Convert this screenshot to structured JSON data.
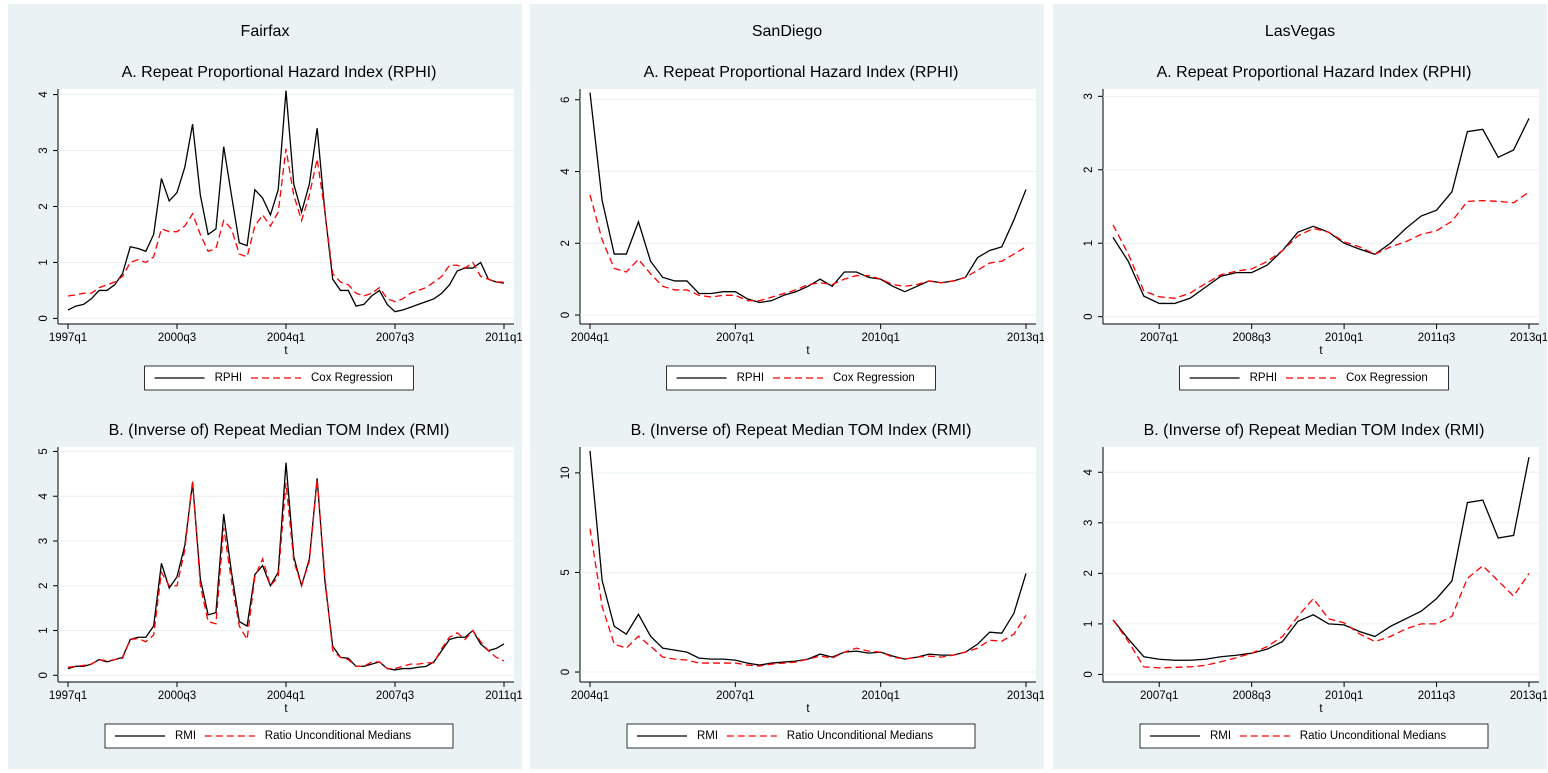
{
  "chart_data": [
    {
      "type": "line",
      "heading": "Fairfax",
      "title": "A. Repeat Proportional Hazard Index (RPHI)",
      "x_label": "t",
      "categories": [
        "1997q1",
        null,
        null,
        null,
        null,
        null,
        null,
        null,
        null,
        null,
        null,
        null,
        null,
        null,
        "2000q3",
        null,
        null,
        null,
        null,
        null,
        null,
        null,
        null,
        null,
        null,
        null,
        null,
        null,
        "2004q1",
        null,
        null,
        null,
        null,
        null,
        null,
        null,
        null,
        null,
        null,
        null,
        null,
        null,
        "2007q3",
        null,
        null,
        null,
        null,
        null,
        null,
        null,
        null,
        null,
        null,
        null,
        null,
        null,
        "2011q1"
      ],
      "series": [
        {
          "name": "RPHI",
          "color": "#000000",
          "dashed": false,
          "values": [
            0.15,
            0.22,
            0.25,
            0.35,
            0.5,
            0.5,
            0.6,
            0.8,
            1.28,
            1.25,
            1.2,
            1.5,
            2.5,
            2.1,
            2.25,
            2.7,
            3.47,
            2.2,
            1.5,
            1.6,
            3.07,
            2.2,
            1.35,
            1.3,
            2.3,
            2.15,
            1.85,
            2.3,
            4.07,
            2.4,
            1.9,
            2.4,
            3.4,
            1.9,
            0.7,
            0.5,
            0.5,
            0.22,
            0.25,
            0.4,
            0.5,
            0.25,
            0.12,
            0.15,
            0.2,
            0.25,
            0.3,
            0.35,
            0.45,
            0.6,
            0.85,
            0.9,
            0.9,
            1.0,
            0.7,
            0.65,
            0.63
          ]
        },
        {
          "name": "Cox Regression",
          "color": "#ff0000",
          "dashed": true,
          "values": [
            0.4,
            0.42,
            0.45,
            0.45,
            0.55,
            0.6,
            0.65,
            0.75,
            1.0,
            1.05,
            1.0,
            1.1,
            1.6,
            1.55,
            1.55,
            1.65,
            1.87,
            1.5,
            1.2,
            1.25,
            1.75,
            1.6,
            1.15,
            1.1,
            1.65,
            1.85,
            1.65,
            1.9,
            3.03,
            2.2,
            1.75,
            2.2,
            2.85,
            1.9,
            0.8,
            0.65,
            0.6,
            0.45,
            0.4,
            0.45,
            0.55,
            0.35,
            0.3,
            0.35,
            0.45,
            0.5,
            0.55,
            0.65,
            0.75,
            0.95,
            0.95,
            0.9,
            1.0,
            0.75,
            0.7,
            0.65,
            0.65
          ]
        }
      ],
      "ylim": [
        -0.1,
        4.1
      ],
      "yticks": [
        0,
        1,
        2,
        3,
        4
      ],
      "grid": true,
      "legend": "bottom"
    },
    {
      "type": "line",
      "title": "B. (Inverse of) Repeat Median TOM Index (RMI)",
      "x_label": "t",
      "categories": [
        "1997q1",
        null,
        null,
        null,
        null,
        null,
        null,
        null,
        null,
        null,
        null,
        null,
        null,
        null,
        "2000q3",
        null,
        null,
        null,
        null,
        null,
        null,
        null,
        null,
        null,
        null,
        null,
        null,
        null,
        "2004q1",
        null,
        null,
        null,
        null,
        null,
        null,
        null,
        null,
        null,
        null,
        null,
        null,
        null,
        "2007q3",
        null,
        null,
        null,
        null,
        null,
        null,
        null,
        null,
        null,
        null,
        null,
        null,
        null,
        "2011q1"
      ],
      "series": [
        {
          "name": "RMI",
          "color": "#000000",
          "dashed": false,
          "values": [
            0.15,
            0.2,
            0.2,
            0.25,
            0.35,
            0.3,
            0.35,
            0.4,
            0.8,
            0.85,
            0.85,
            1.1,
            2.5,
            1.95,
            2.2,
            2.9,
            4.3,
            2.15,
            1.35,
            1.4,
            3.6,
            2.3,
            1.2,
            1.1,
            2.25,
            2.45,
            2.0,
            2.3,
            4.75,
            2.65,
            2.0,
            2.6,
            4.4,
            2.1,
            0.65,
            0.4,
            0.38,
            0.2,
            0.2,
            0.25,
            0.3,
            0.15,
            0.12,
            0.15,
            0.15,
            0.18,
            0.2,
            0.3,
            0.55,
            0.8,
            0.85,
            0.85,
            1.0,
            0.7,
            0.55,
            0.6,
            0.7
          ]
        },
        {
          "name": "Ratio Unconditional Medians",
          "color": "#ff0000",
          "dashed": true,
          "values": [
            0.18,
            0.2,
            0.22,
            0.25,
            0.35,
            0.32,
            0.35,
            0.38,
            0.8,
            0.82,
            0.75,
            0.9,
            2.3,
            2.0,
            2.0,
            2.8,
            4.35,
            2.0,
            1.2,
            1.15,
            3.3,
            2.1,
            1.1,
            0.8,
            2.2,
            2.6,
            2.0,
            2.2,
            4.3,
            2.55,
            2.0,
            2.55,
            4.38,
            2.2,
            0.55,
            0.4,
            0.35,
            0.2,
            0.2,
            0.3,
            0.3,
            0.15,
            0.15,
            0.2,
            0.25,
            0.25,
            0.28,
            0.28,
            0.6,
            0.85,
            0.95,
            0.8,
            1.0,
            0.75,
            0.55,
            0.4,
            0.32
          ]
        }
      ],
      "ylim": [
        -0.15,
        5.1
      ],
      "yticks": [
        0,
        1,
        2,
        3,
        4,
        5
      ],
      "grid": true,
      "legend": "bottom"
    },
    {
      "type": "line",
      "heading": "SanDiego",
      "title": "A. Repeat Proportional Hazard Index (RPHI)",
      "x_label": "t",
      "categories": [
        "2004q1",
        null,
        null,
        null,
        null,
        null,
        null,
        null,
        null,
        null,
        null,
        null,
        "2007q1",
        null,
        null,
        null,
        null,
        null,
        null,
        null,
        null,
        null,
        null,
        null,
        "2010q1",
        null,
        null,
        null,
        null,
        null,
        null,
        null,
        null,
        null,
        null,
        null,
        "2013q1"
      ],
      "series": [
        {
          "name": "RPHI",
          "color": "#000000",
          "dashed": false,
          "values": [
            6.2,
            3.2,
            1.7,
            1.7,
            2.6,
            1.5,
            1.05,
            0.95,
            0.95,
            0.6,
            0.6,
            0.65,
            0.65,
            0.45,
            0.35,
            0.4,
            0.55,
            0.65,
            0.8,
            1.0,
            0.8,
            1.2,
            1.2,
            1.05,
            1.0,
            0.8,
            0.65,
            0.8,
            0.95,
            0.9,
            0.95,
            1.05,
            1.6,
            1.8,
            1.9,
            2.65,
            3.5
          ]
        },
        {
          "name": "Cox Regression",
          "color": "#ff0000",
          "dashed": true,
          "values": [
            3.35,
            2.1,
            1.3,
            1.2,
            1.55,
            1.15,
            0.8,
            0.7,
            0.7,
            0.55,
            0.5,
            0.55,
            0.55,
            0.4,
            0.4,
            0.5,
            0.6,
            0.7,
            0.85,
            0.9,
            0.85,
            1.0,
            1.1,
            1.1,
            1.0,
            0.85,
            0.8,
            0.85,
            0.95,
            0.9,
            0.95,
            1.05,
            1.25,
            1.45,
            1.5,
            1.7,
            1.9
          ]
        }
      ],
      "ylim": [
        -0.25,
        6.3
      ],
      "yticks": [
        0,
        2,
        4,
        6
      ],
      "grid": true,
      "legend": "bottom"
    },
    {
      "type": "line",
      "title": "B. (Inverse of) Repeat Median TOM Index (RMI)",
      "x_label": "t",
      "categories": [
        "2004q1",
        null,
        null,
        null,
        null,
        null,
        null,
        null,
        null,
        null,
        null,
        null,
        "2007q1",
        null,
        null,
        null,
        null,
        null,
        null,
        null,
        null,
        null,
        null,
        null,
        "2010q1",
        null,
        null,
        null,
        null,
        null,
        null,
        null,
        null,
        null,
        null,
        null,
        "2013q1"
      ],
      "series": [
        {
          "name": "RMI",
          "color": "#000000",
          "dashed": false,
          "values": [
            11.1,
            4.6,
            2.3,
            1.9,
            2.9,
            1.8,
            1.2,
            1.1,
            1.0,
            0.7,
            0.65,
            0.65,
            0.6,
            0.45,
            0.35,
            0.45,
            0.5,
            0.55,
            0.65,
            0.9,
            0.75,
            1.0,
            1.05,
            0.95,
            1.0,
            0.8,
            0.65,
            0.75,
            0.9,
            0.85,
            0.85,
            1.0,
            1.4,
            2.0,
            1.95,
            2.95,
            4.95
          ]
        },
        {
          "name": "Ratio Unconditional Medians",
          "color": "#ff0000",
          "dashed": true,
          "values": [
            7.2,
            3.3,
            1.4,
            1.2,
            1.8,
            1.3,
            0.75,
            0.65,
            0.6,
            0.45,
            0.45,
            0.45,
            0.45,
            0.35,
            0.3,
            0.4,
            0.45,
            0.5,
            0.65,
            0.8,
            0.7,
            1.0,
            1.2,
            1.05,
            1.0,
            0.75,
            0.65,
            0.75,
            0.8,
            0.75,
            0.85,
            1.0,
            1.2,
            1.6,
            1.55,
            1.9,
            2.85
          ]
        }
      ],
      "ylim": [
        -0.5,
        11.3
      ],
      "yticks": [
        0,
        5,
        10
      ],
      "grid": true,
      "legend": "bottom"
    },
    {
      "type": "line",
      "heading": "LasVegas",
      "title": "A. Repeat Proportional Hazard Index (RPHI)",
      "x_label": "t",
      "categories": [
        null,
        null,
        null,
        "2007q1",
        null,
        null,
        null,
        null,
        null,
        "2008q3",
        null,
        null,
        null,
        null,
        null,
        "2010q1",
        null,
        null,
        null,
        null,
        null,
        "2011q3",
        null,
        null,
        null,
        null,
        null,
        "2013q1"
      ],
      "series": [
        {
          "name": "RPHI",
          "color": "#000000",
          "dashed": false,
          "values": [
            1.08,
            0.75,
            0.28,
            0.18,
            0.18,
            0.25,
            0.4,
            0.55,
            0.6,
            0.6,
            0.7,
            0.9,
            1.15,
            1.23,
            1.15,
            1.0,
            0.92,
            0.85,
            1.0,
            1.2,
            1.37,
            1.45,
            1.7,
            2.52,
            2.55,
            2.17,
            2.27,
            2.7
          ]
        },
        {
          "name": "Cox Regression",
          "color": "#ff0000",
          "dashed": true,
          "values": [
            1.25,
            0.85,
            0.35,
            0.27,
            0.25,
            0.32,
            0.45,
            0.57,
            0.62,
            0.65,
            0.75,
            0.9,
            1.1,
            1.2,
            1.15,
            1.02,
            0.95,
            0.85,
            0.95,
            1.02,
            1.12,
            1.17,
            1.3,
            1.57,
            1.58,
            1.57,
            1.55,
            1.7
          ]
        }
      ],
      "ylim": [
        -0.1,
        3.1
      ],
      "yticks": [
        0,
        1,
        2,
        3
      ],
      "grid": true,
      "legend": "bottom"
    },
    {
      "type": "line",
      "title": "B. (Inverse of) Repeat Median TOM Index (RMI)",
      "x_label": "t",
      "categories": [
        null,
        null,
        null,
        "2007q1",
        null,
        null,
        null,
        null,
        null,
        "2008q3",
        null,
        null,
        null,
        null,
        null,
        "2010q1",
        null,
        null,
        null,
        null,
        null,
        "2011q3",
        null,
        null,
        null,
        null,
        null,
        "2013q1"
      ],
      "series": [
        {
          "name": "RMI",
          "color": "#000000",
          "dashed": false,
          "values": [
            1.08,
            0.7,
            0.35,
            0.3,
            0.28,
            0.28,
            0.3,
            0.35,
            0.38,
            0.42,
            0.5,
            0.65,
            1.05,
            1.18,
            1.0,
            0.98,
            0.85,
            0.75,
            0.95,
            1.1,
            1.25,
            1.5,
            1.85,
            3.4,
            3.45,
            2.7,
            2.75,
            4.3
          ]
        },
        {
          "name": "Ratio Unconditional Medians",
          "color": "#ff0000",
          "dashed": true,
          "values": [
            1.08,
            0.65,
            0.15,
            0.13,
            0.14,
            0.15,
            0.18,
            0.25,
            0.33,
            0.42,
            0.55,
            0.75,
            1.15,
            1.5,
            1.1,
            1.02,
            0.8,
            0.65,
            0.75,
            0.9,
            1.0,
            1.0,
            1.15,
            1.9,
            2.15,
            1.85,
            1.55,
            2.0
          ]
        }
      ],
      "ylim": [
        -0.15,
        4.5
      ],
      "yticks": [
        0,
        1,
        2,
        3,
        4
      ],
      "grid": true,
      "legend": "bottom"
    }
  ]
}
